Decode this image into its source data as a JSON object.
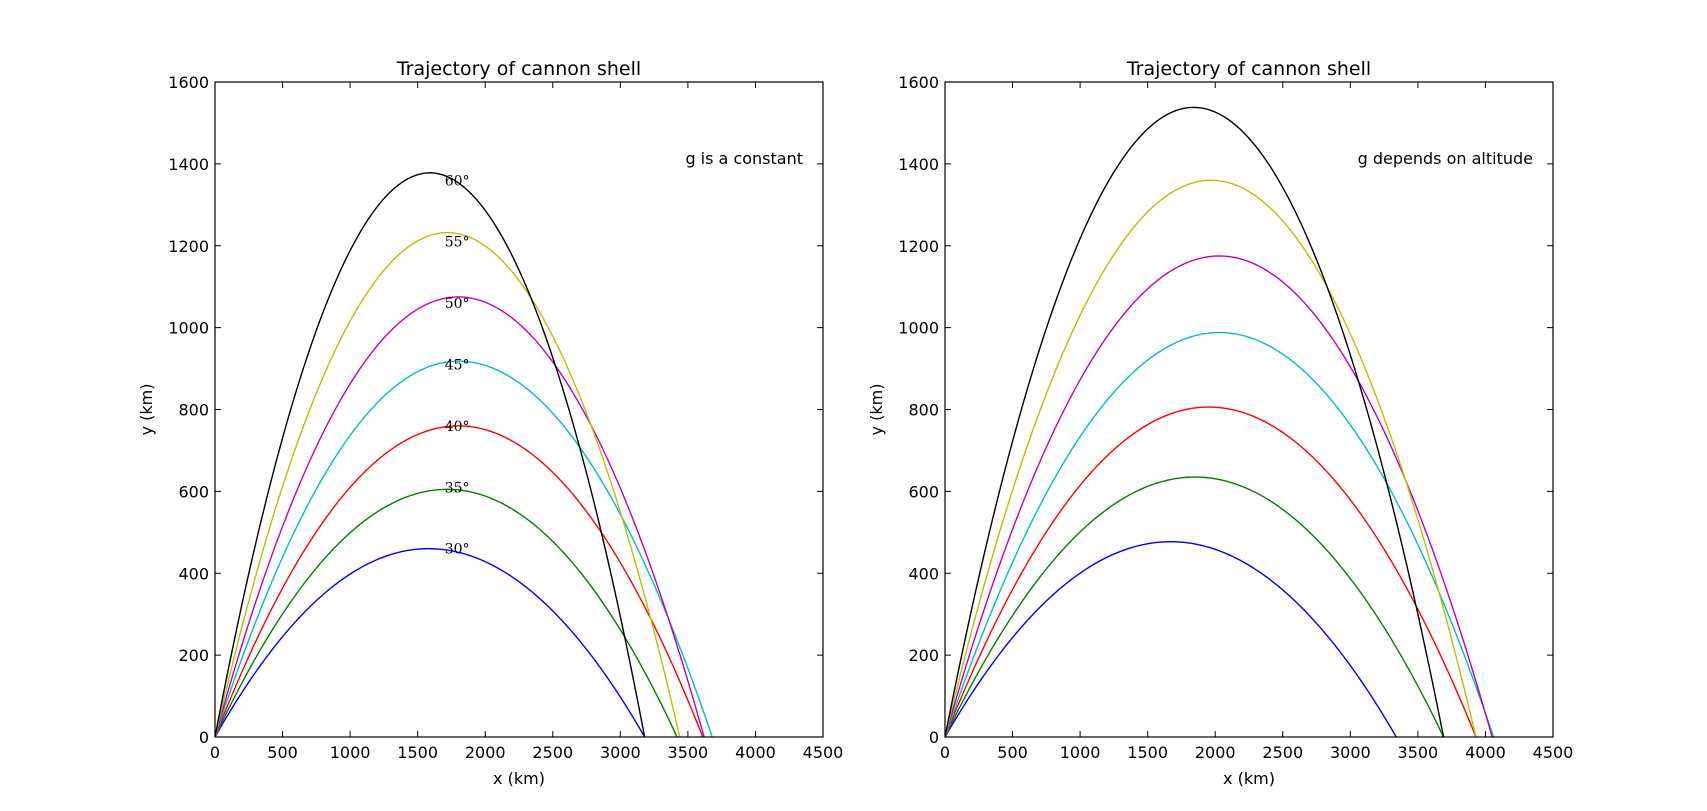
{
  "chart_data": [
    {
      "type": "line",
      "title": "Trajectory of cannon shell",
      "xlabel": "x (km)",
      "ylabel": "y (km)",
      "xlim": [
        0,
        4500
      ],
      "ylim": [
        0,
        1600
      ],
      "xticks": [
        0,
        500,
        1000,
        1500,
        2000,
        2500,
        3000,
        3500,
        4000,
        4500
      ],
      "yticks": [
        0,
        200,
        400,
        600,
        800,
        1000,
        1200,
        1400,
        1600
      ],
      "grid": false,
      "annotation": "g is a constant",
      "angle_labels": [
        {
          "text": "30°",
          "x": 1700,
          "y": 460
        },
        {
          "text": "35°",
          "x": 1700,
          "y": 610
        },
        {
          "text": "40°",
          "x": 1700,
          "y": 760
        },
        {
          "text": "45°",
          "x": 1700,
          "y": 910
        },
        {
          "text": "50°",
          "x": 1700,
          "y": 1060
        },
        {
          "text": "55°",
          "x": 1700,
          "y": 1210
        },
        {
          "text": "60°",
          "x": 1700,
          "y": 1360
        }
      ],
      "series": [
        {
          "color": "#0000ff",
          "range": 3180,
          "apex_x": 1580,
          "apex_y": 460
        },
        {
          "color": "#008000",
          "range": 3420,
          "apex_x": 1720,
          "apex_y": 605
        },
        {
          "color": "#ff0000",
          "range": 3610,
          "apex_x": 1800,
          "apex_y": 760
        },
        {
          "color": "#00bfbf",
          "range": 3680,
          "apex_x": 1800,
          "apex_y": 918
        },
        {
          "color": "#bf00bf",
          "range": 3620,
          "apex_x": 1800,
          "apex_y": 1075
        },
        {
          "color": "#bfbf00",
          "range": 3440,
          "apex_x": 1720,
          "apex_y": 1232
        },
        {
          "color": "#000000",
          "range": 3180,
          "apex_x": 1590,
          "apex_y": 1378
        }
      ]
    },
    {
      "type": "line",
      "title": "Trajectory of cannon shell",
      "xlabel": "x (km)",
      "ylabel": "y (km)",
      "xlim": [
        0,
        4500
      ],
      "ylim": [
        0,
        1600
      ],
      "xticks": [
        0,
        500,
        1000,
        1500,
        2000,
        2500,
        3000,
        3500,
        4000,
        4500
      ],
      "yticks": [
        0,
        200,
        400,
        600,
        800,
        1000,
        1200,
        1400,
        1600
      ],
      "grid": false,
      "annotation": "g depends on altitude",
      "angle_labels": [],
      "series": [
        {
          "color": "#0000ff",
          "range": 3340,
          "apex_x": 1670,
          "apex_y": 477
        },
        {
          "color": "#008000",
          "range": 3690,
          "apex_x": 1850,
          "apex_y": 635
        },
        {
          "color": "#ff0000",
          "range": 3930,
          "apex_x": 1950,
          "apex_y": 806
        },
        {
          "color": "#00bfbf",
          "range": 4060,
          "apex_x": 2030,
          "apex_y": 988
        },
        {
          "color": "#bf00bf",
          "range": 4050,
          "apex_x": 2030,
          "apex_y": 1175
        },
        {
          "color": "#bfbf00",
          "range": 3930,
          "apex_x": 1970,
          "apex_y": 1360
        },
        {
          "color": "#000000",
          "range": 3690,
          "apex_x": 1840,
          "apex_y": 1538
        }
      ]
    }
  ]
}
